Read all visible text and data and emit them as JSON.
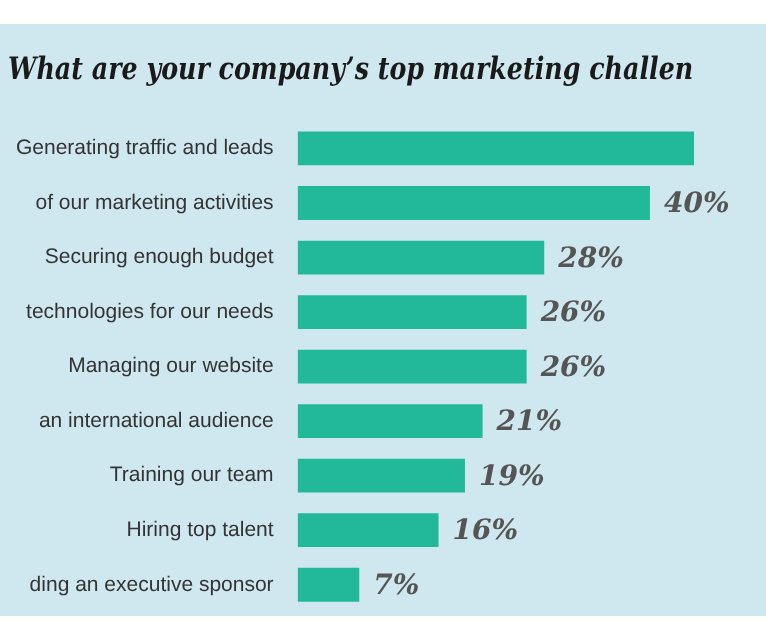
{
  "chart_data": {
    "type": "bar",
    "orientation": "horizontal",
    "title": "What are your company’s top marketing challen",
    "categories": [
      "Generating traffic and leads",
      "of our marketing activities",
      "Securing enough budget",
      "technologies for our needs",
      "Managing our website",
      "an international audience",
      "Training our team",
      "Hiring top talent",
      "ding an executive sponsor"
    ],
    "values": [
      45,
      40,
      28,
      26,
      26,
      21,
      19,
      16,
      7
    ],
    "value_labels": [
      null,
      "40%",
      "28%",
      "26%",
      "26%",
      "21%",
      "19%",
      "16%",
      "7%"
    ],
    "color": "#22b89a",
    "xlim": [
      0,
      45
    ],
    "tick_labels": "y",
    "grid": false,
    "legend": false
  }
}
